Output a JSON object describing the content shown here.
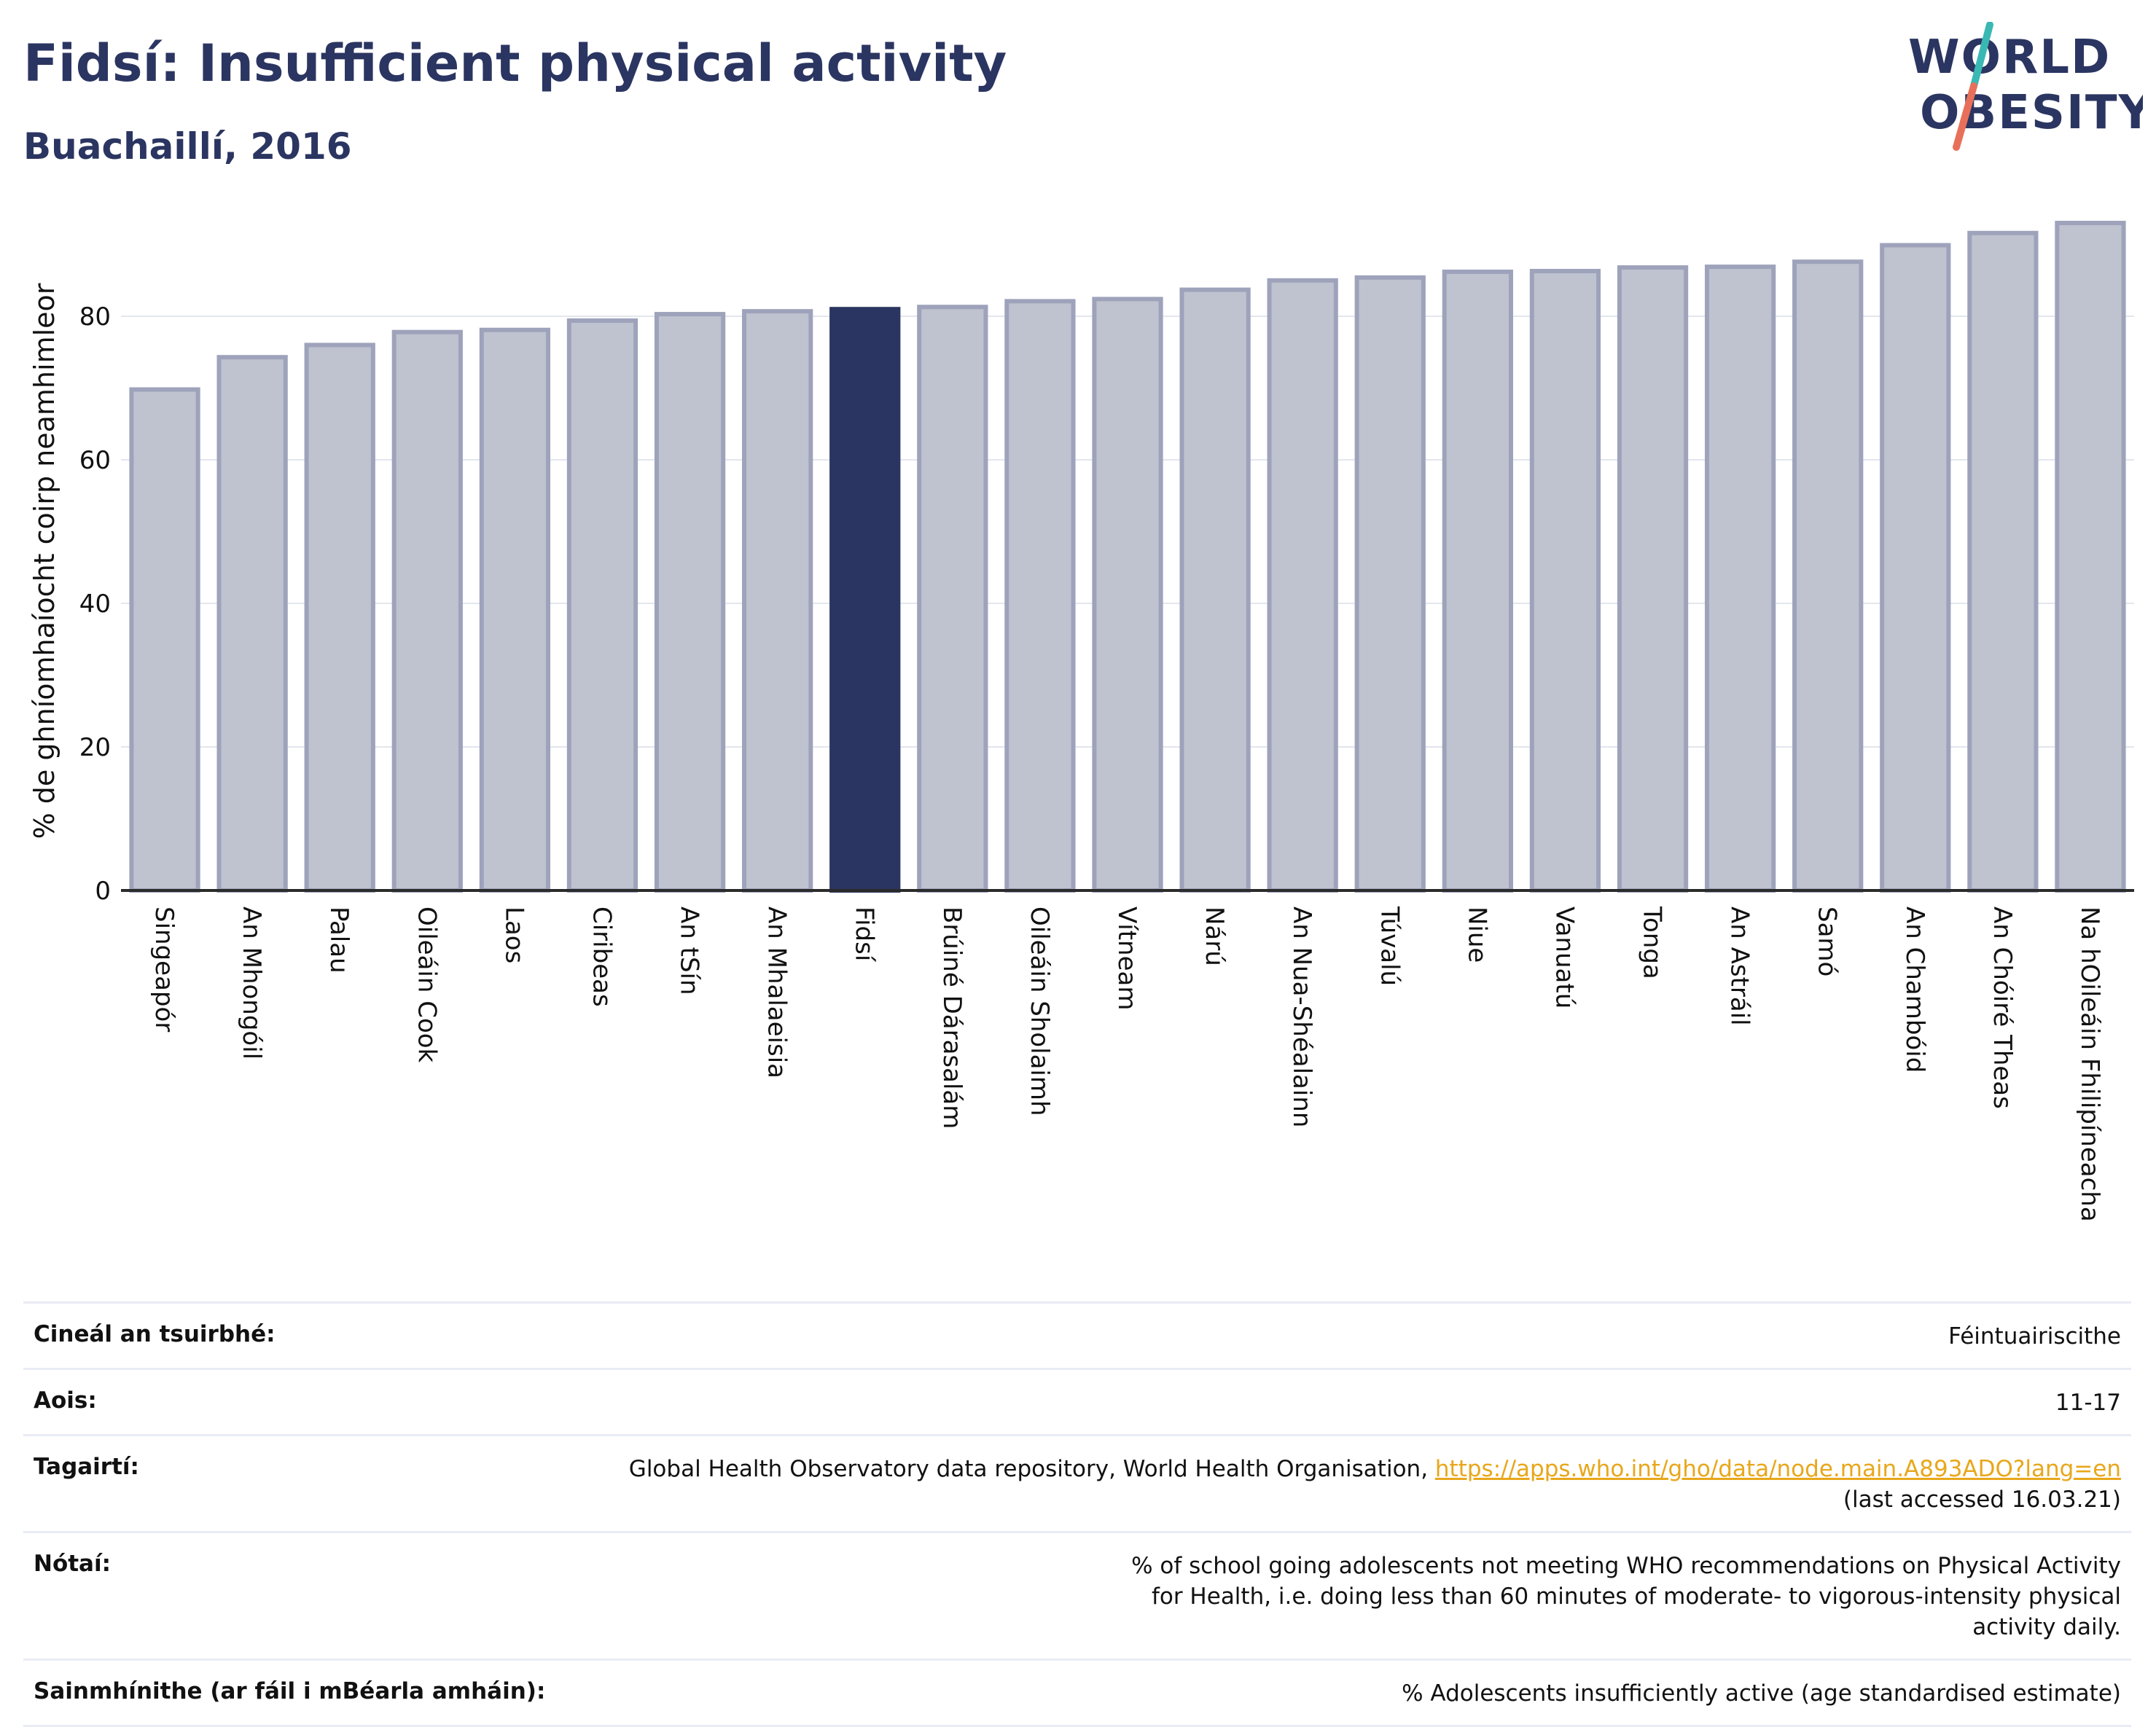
{
  "title": "Fidsí: Insufficient physical activity",
  "subtitle": "Buachaillí, 2016",
  "logo": {
    "line1": "WORLD",
    "line2": "OBESITY"
  },
  "colors": {
    "highlight": "#2b3561",
    "bar": "#bfc2cf",
    "bar_border": "#9ea3bb",
    "text": "#2b3561",
    "link": "#e8a71b",
    "logo_slash_top": "#3ab8b3",
    "logo_slash_bottom": "#e8705a"
  },
  "chart_data": {
    "type": "bar",
    "title": "Fidsí: Insufficient physical activity",
    "subtitle": "Buachaillí, 2016",
    "xlabel": "",
    "ylabel": "% de ghníomhaíocht coirp neamhimleor",
    "ylim": [
      0,
      93
    ],
    "yticks": [
      0,
      20,
      40,
      60,
      80
    ],
    "grid": true,
    "highlight_category": "Fidsí",
    "categories": [
      "Singeapór",
      "An Mhongóil",
      "Palau",
      "Oileáin Cook",
      "Laos",
      "Ciribeas",
      "An tSín",
      "An Mhalaeisia",
      "Fidsí",
      "Brúiné Dárasalám",
      "Oileáin Sholaimh",
      "Vítneam",
      "Nárú",
      "An Nua-Shéalainn",
      "Túvalú",
      "Niue",
      "Vanuatú",
      "Tonga",
      "An Astráil",
      "Samó",
      "An Chambóid",
      "An Chóiré Theas",
      "Na hOileáin Fhilipíneacha"
    ],
    "values": [
      69.8,
      74.3,
      76.0,
      77.8,
      78.1,
      79.4,
      80.3,
      80.7,
      81.0,
      81.3,
      82.1,
      82.4,
      83.7,
      85.0,
      85.4,
      86.2,
      86.3,
      86.8,
      86.9,
      87.6,
      89.9,
      91.6,
      93.0
    ]
  },
  "info": {
    "rows": [
      {
        "label": "Cineál an tsuirbhé:",
        "value": "Féintuairiscithe"
      },
      {
        "label": "Aois:",
        "value": "11-17"
      },
      {
        "label": "Tagairtí:",
        "value": "Global Health Observatory data repository, World Health Organisation, ",
        "link": "https://apps.who.int/gho/data/node.main.A893ADO?lang=en",
        "after": "(last accessed 16.03.21)"
      },
      {
        "label": "Nótaí:",
        "value": "% of school going adolescents not meeting WHO recommendations on Physical Activity for Health, i.e. doing less than 60 minutes of moderate- to vigorous-intensity physical activity daily."
      },
      {
        "label": "Sainmhínithe (ar fáil i mBéarla amháin):",
        "value": "% Adolescents insufficiently active (age standardised estimate)"
      }
    ]
  }
}
